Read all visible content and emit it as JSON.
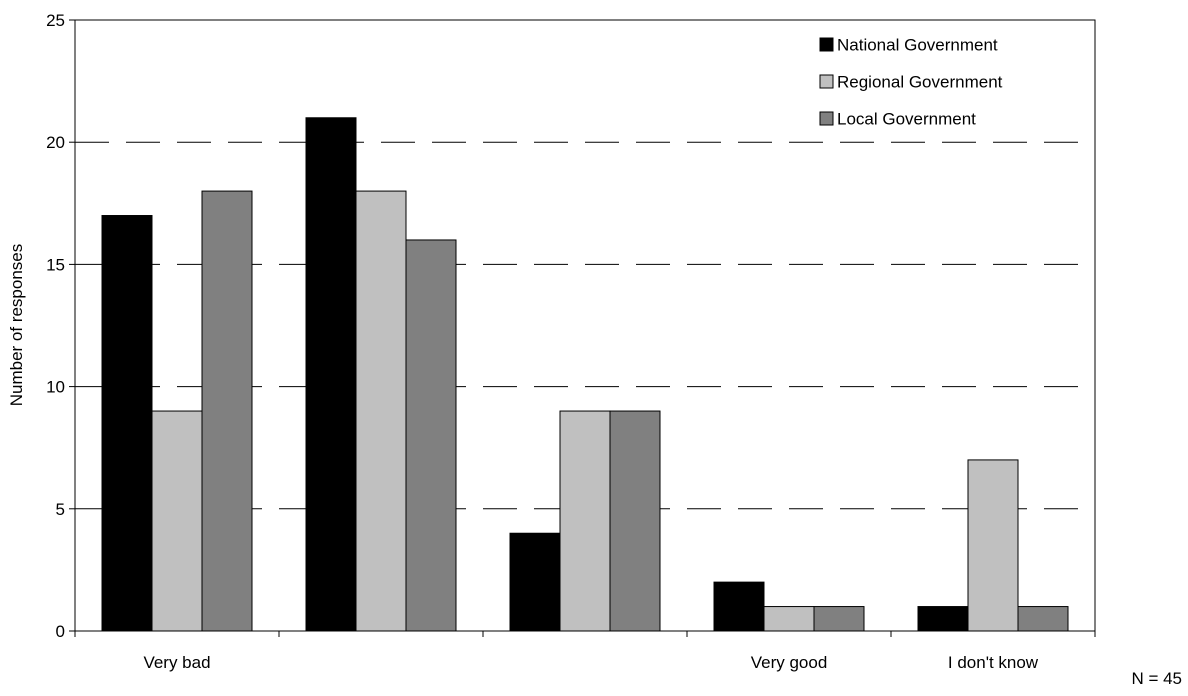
{
  "chart_data": {
    "type": "bar",
    "title": "",
    "xlabel": "",
    "ylabel": "Number of responses",
    "categories": [
      "Very bad",
      "",
      "",
      "Very good",
      "I don't know"
    ],
    "series": [
      {
        "name": "National Government",
        "color": "#000000",
        "values": [
          17,
          21,
          4,
          2,
          1
        ]
      },
      {
        "name": "Regional Government",
        "color": "#c0c0c0",
        "values": [
          9,
          18,
          9,
          1,
          7
        ]
      },
      {
        "name": "Local Government",
        "color": "#808080",
        "values": [
          18,
          16,
          9,
          1,
          1
        ]
      }
    ],
    "ylim": [
      0,
      25
    ],
    "yticks": [
      0,
      5,
      10,
      15,
      20,
      25
    ],
    "grid": "dashed horizontal lines",
    "legend": "top-right",
    "annotation": "N = 45"
  }
}
